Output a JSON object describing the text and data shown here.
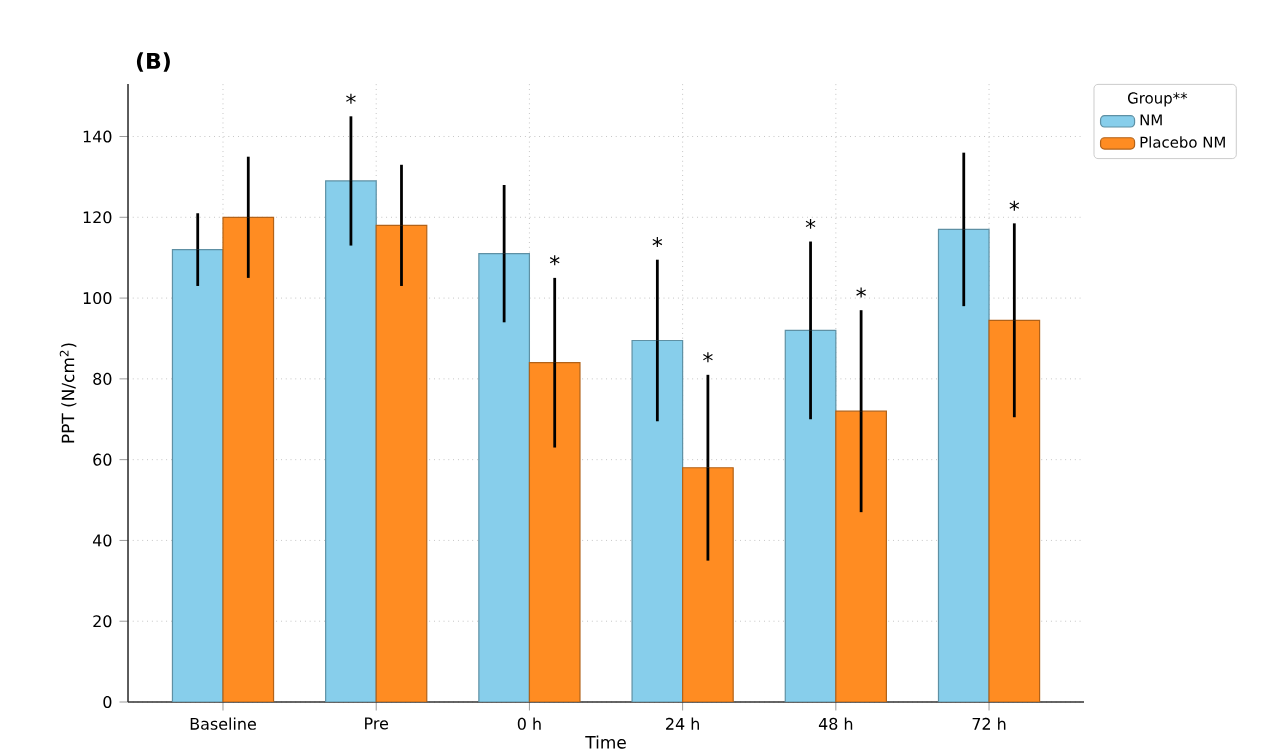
{
  "chart_data": {
    "type": "bar",
    "title": "(B)",
    "xlabel": "Time",
    "ylabel": "PPT (N/cm$^{2}$)",
    "legend_title": "Group**",
    "categories": [
      "Baseline",
      "Pre",
      "0 h",
      "24 h",
      "48 h",
      "72 h"
    ],
    "series": [
      {
        "name": "NM",
        "color": "#87ceeb",
        "values": [
          112,
          129,
          111,
          89.5,
          92,
          117
        ],
        "errors": [
          9,
          16,
          17,
          20,
          22,
          19
        ]
      },
      {
        "name": "Placebo NM",
        "color": "#ff8c22",
        "values": [
          120,
          118,
          84,
          58,
          72,
          94.5
        ],
        "errors": [
          15,
          15,
          21,
          23,
          25,
          24
        ]
      }
    ],
    "annotations": [
      "*",
      "*",
      "*",
      "*",
      "*",
      "*",
      "*"
    ],
    "ylim": [
      0,
      153
    ],
    "yticks": [
      0,
      20,
      40,
      60,
      80,
      100,
      120,
      140
    ],
    "grid": true,
    "legend": "top right"
  }
}
